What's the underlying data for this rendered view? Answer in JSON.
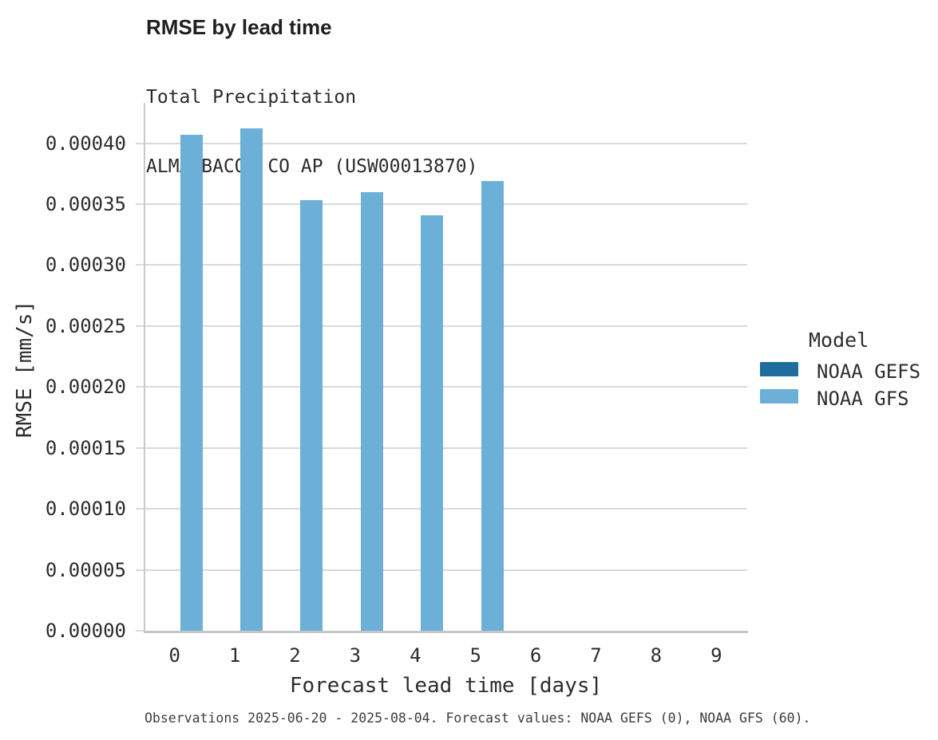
{
  "chart_data": {
    "type": "bar",
    "title": "RMSE by lead time",
    "subtitle_lines": [
      "Total Precipitation",
      "ALMA BACON CO AP (USW00013870)"
    ],
    "xlabel": "Forecast lead time [days]",
    "ylabel": "RMSE [mm/s]",
    "categories": [
      "0",
      "1",
      "2",
      "3",
      "4",
      "5",
      "6",
      "7",
      "8",
      "9"
    ],
    "series": [
      {
        "name": "NOAA GEFS",
        "color": "#1f6d9e",
        "values": [
          null,
          null,
          null,
          null,
          null,
          null,
          null,
          null,
          null,
          null
        ]
      },
      {
        "name": "NOAA GFS",
        "color": "#6cb0d8",
        "values": [
          0.000407,
          0.000412,
          0.000353,
          0.00036,
          0.000341,
          0.000369,
          null,
          null,
          null,
          null
        ]
      }
    ],
    "ylim": [
      0,
      0.000435
    ],
    "yticks": [
      {
        "value": 0.0,
        "label": "0.00000"
      },
      {
        "value": 5e-05,
        "label": "0.00005"
      },
      {
        "value": 0.0001,
        "label": "0.00010"
      },
      {
        "value": 0.00015,
        "label": "0.00015"
      },
      {
        "value": 0.0002,
        "label": "0.00020"
      },
      {
        "value": 0.00025,
        "label": "0.00025"
      },
      {
        "value": 0.0003,
        "label": "0.00030"
      },
      {
        "value": 0.00035,
        "label": "0.00035"
      },
      {
        "value": 0.0004,
        "label": "0.00040"
      }
    ],
    "grid": true,
    "legend": {
      "title": "Model",
      "position": "right"
    },
    "caption": "Observations 2025-06-20 - 2025-08-04. Forecast values: NOAA GEFS (0), NOAA GFS (60)."
  },
  "colors": {
    "gridline": "#d9d9d9",
    "y_axis_line": "#c9c9c9",
    "x_axis_line": "#c6c6c6",
    "tick_text": "#2d2d2d",
    "title_text": "#1f1f1f",
    "caption_text": "#3d3d3d",
    "background": "#ffffff"
  }
}
